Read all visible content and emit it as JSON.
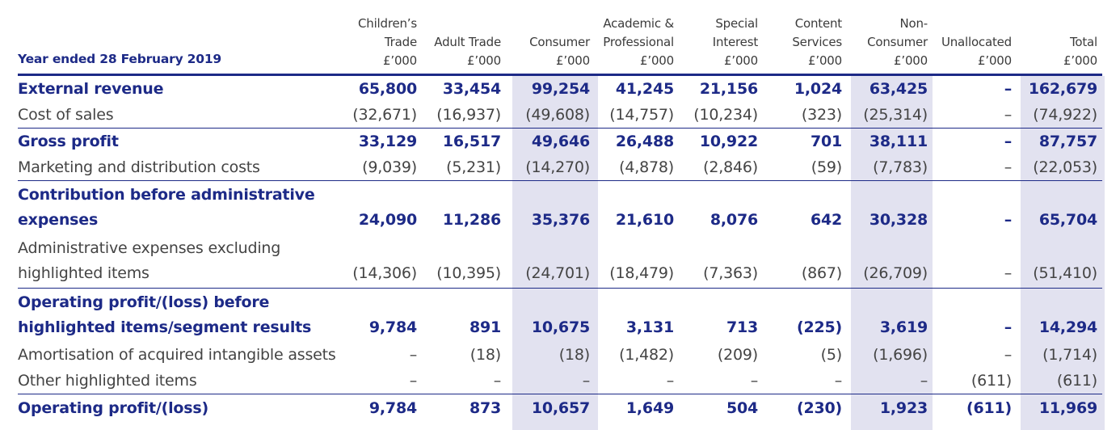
{
  "header": {
    "period_label": "Year ended 28 February 2019",
    "columns": [
      {
        "lines": [
          "Children’s",
          "Trade",
          "£’000"
        ]
      },
      {
        "lines": [
          "Adult Trade",
          "£’000"
        ]
      },
      {
        "lines": [
          "Consumer",
          "£’000"
        ]
      },
      {
        "lines": [
          "Academic &",
          "Professional",
          "£’000"
        ]
      },
      {
        "lines": [
          "Special",
          "Interest",
          "£’000"
        ]
      },
      {
        "lines": [
          "Content",
          "Services",
          "£’000"
        ]
      },
      {
        "lines": [
          "Non-",
          "Consumer",
          "£’000"
        ]
      },
      {
        "lines": [
          "Unallocated",
          "£’000"
        ]
      },
      {
        "lines": [
          "Total",
          "£’000"
        ]
      }
    ]
  },
  "rows": [
    {
      "label": "External revenue",
      "style": "bold",
      "values": [
        "65,800",
        "33,454",
        "99,254",
        "41,245",
        "21,156",
        "1,024",
        "63,425",
        "–",
        "162,679"
      ]
    },
    {
      "label": "Cost of sales",
      "style": "light",
      "values": [
        "(32,671)",
        "(16,937)",
        "(49,608)",
        "(14,757)",
        "(10,234)",
        "(323)",
        "(25,314)",
        "–",
        "(74,922)"
      ]
    },
    {
      "label": "Gross profit",
      "style": "bold",
      "values": [
        "33,129",
        "16,517",
        "49,646",
        "26,488",
        "10,922",
        "701",
        "38,111",
        "–",
        "87,757"
      ]
    },
    {
      "label": "Marketing and distribution costs",
      "style": "light",
      "values": [
        "(9,039)",
        "(5,231)",
        "(14,270)",
        "(4,878)",
        "(2,846)",
        "(59)",
        "(7,783)",
        "–",
        "(22,053)"
      ]
    },
    {
      "label_lines": [
        "Contribution before administrative",
        "expenses"
      ],
      "style": "bold",
      "values": [
        "24,090",
        "11,286",
        "35,376",
        "21,610",
        "8,076",
        "642",
        "30,328",
        "–",
        "65,704"
      ]
    },
    {
      "label_lines": [
        "Administrative expenses excluding",
        "highlighted items"
      ],
      "style": "light",
      "values": [
        "(14,306)",
        "(10,395)",
        "(24,701)",
        "(18,479)",
        "(7,363)",
        "(867)",
        "(26,709)",
        "–",
        "(51,410)"
      ]
    },
    {
      "label_lines": [
        "Operating profit/(loss) before",
        "highlighted items/segment results"
      ],
      "style": "bold",
      "values": [
        "9,784",
        "891",
        "10,675",
        "3,131",
        "713",
        "(225)",
        "3,619",
        "–",
        "14,294"
      ]
    },
    {
      "label": "Amortisation of acquired intangible assets",
      "style": "light",
      "values": [
        "–",
        "(18)",
        "(18)",
        "(1,482)",
        "(209)",
        "(5)",
        "(1,696)",
        "–",
        "(1,714)"
      ]
    },
    {
      "label": "Other highlighted items",
      "style": "light",
      "values": [
        "–",
        "–",
        "–",
        "–",
        "–",
        "–",
        "–",
        "(611)",
        "(611)"
      ]
    },
    {
      "label": "Operating profit/(loss)",
      "style": "bold",
      "values": [
        "9,784",
        "873",
        "10,657",
        "1,649",
        "504",
        "(230)",
        "1,923",
        "(611)",
        "11,969"
      ]
    }
  ],
  "colors": {
    "accent": "#1d2a87",
    "shade": "#e2e2f0",
    "text": "#3b3b3b"
  }
}
